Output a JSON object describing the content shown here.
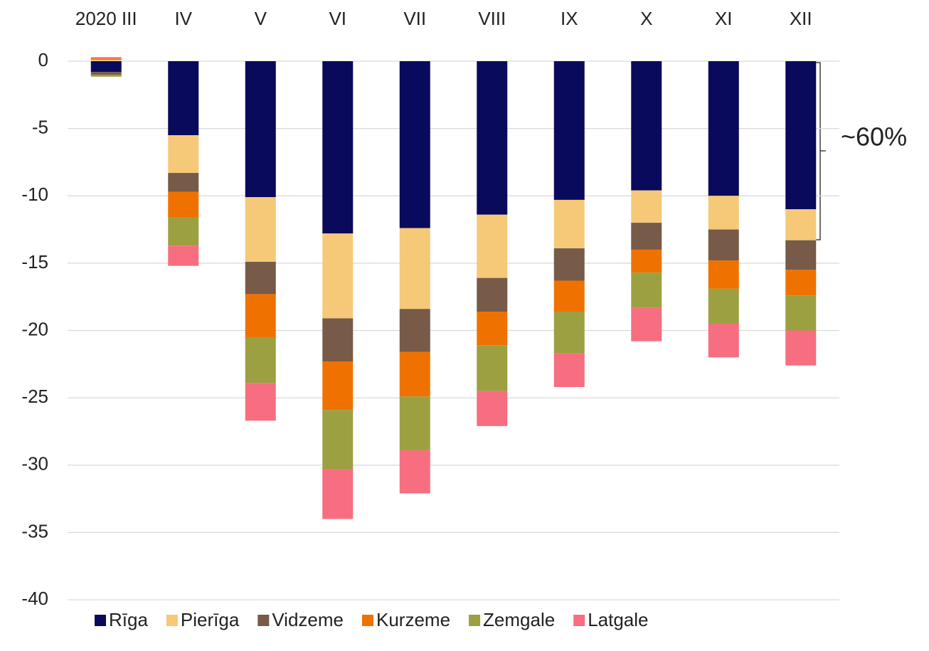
{
  "chart_data": {
    "type": "stacked_bar",
    "categories": [
      "2020 III",
      "IV",
      "V",
      "VI",
      "VII",
      "VIII",
      "IX",
      "X",
      "XI",
      "XII"
    ],
    "series": [
      {
        "name": "Rīga",
        "color": "#0a0a5c",
        "values": [
          -0.8,
          -5.5,
          -10.1,
          -12.8,
          -12.4,
          -11.4,
          -10.3,
          -9.6,
          -10.0,
          -11.0
        ]
      },
      {
        "name": "Pierīga",
        "color": "#f5c978",
        "values": [
          0.1,
          -2.8,
          -4.8,
          -6.3,
          -6.0,
          -4.7,
          -3.6,
          -2.4,
          -2.5,
          -2.3
        ]
      },
      {
        "name": "Vidzeme",
        "color": "#775a48",
        "values": [
          -0.2,
          -1.4,
          -2.4,
          -3.2,
          -3.2,
          -2.5,
          -2.4,
          -2.0,
          -2.3,
          -2.2
        ]
      },
      {
        "name": "Kurzeme",
        "color": "#ef7200",
        "values": [
          0.1,
          -1.9,
          -3.2,
          -3.6,
          -3.3,
          -2.5,
          -2.3,
          -1.7,
          -2.1,
          -1.9
        ]
      },
      {
        "name": "Zemgale",
        "color": "#9ca040",
        "values": [
          -0.15,
          -2.1,
          -3.4,
          -4.4,
          -4.0,
          -3.4,
          -3.1,
          -2.6,
          -2.6,
          -2.6
        ]
      },
      {
        "name": "Latgale",
        "color": "#f66e80",
        "values": [
          0.1,
          -1.5,
          -2.8,
          -3.7,
          -3.2,
          -2.6,
          -2.5,
          -2.5,
          -2.5,
          -2.6
        ]
      }
    ],
    "ylim": [
      -40,
      0
    ],
    "yticks": [
      0,
      -5,
      -10,
      -15,
      -20,
      -25,
      -30,
      -35,
      -40
    ],
    "grid": true,
    "annotation": "~60%"
  }
}
